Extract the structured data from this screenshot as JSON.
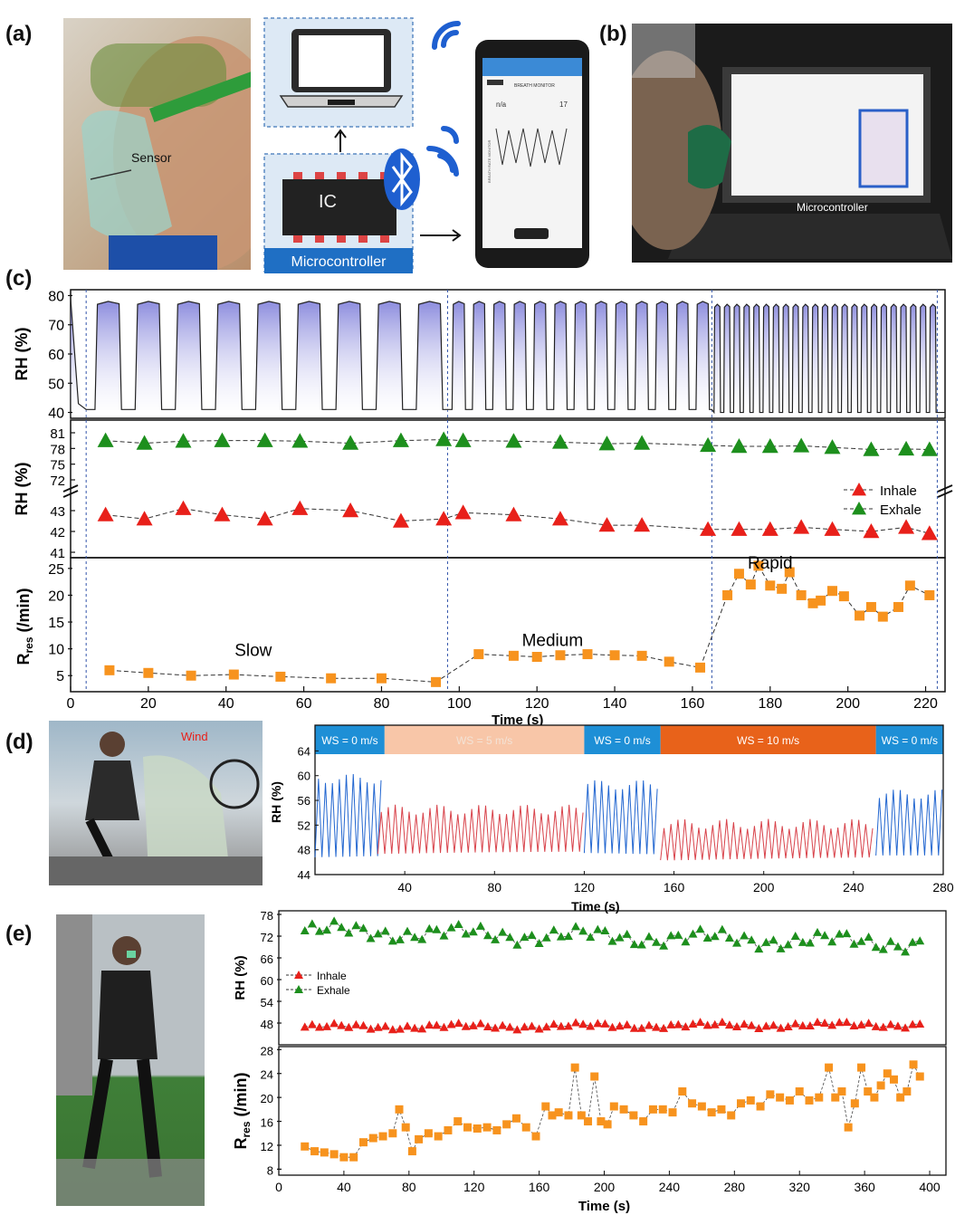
{
  "panels": {
    "a": "(a)",
    "b": "(b)",
    "c": "(c)",
    "d": "(d)",
    "e": "(e)"
  },
  "panel_a": {
    "sensor_label": "Sensor",
    "ic_label": "IC",
    "microcontroller_label": "Microcontroller",
    "phone_title": "BREATH MONITOR",
    "phone_value_left": "n/a",
    "phone_value_right": "17",
    "phone_axis": "BREATH RATE MONITOR",
    "icons": [
      "laptop-icon",
      "chip-icon",
      "bluetooth-icon",
      "wifi-icon",
      "phone-icon"
    ]
  },
  "panel_b": {
    "microcontroller_label": "Microcontroller"
  },
  "panel_d": {
    "wind_label": "Wind"
  },
  "colors": {
    "inhale": "#e8201a",
    "exhale": "#1d8f1d",
    "rres": "#f7931e",
    "wave_blue": "#2266d0",
    "wave_red": "#d8424a",
    "band_blue": "#1e8fd6",
    "band_light": "#f8c6a8",
    "band_orange": "#e8621a",
    "fill_top": "#7272d6"
  },
  "chart_data": [
    {
      "id": "c-top",
      "type": "line",
      "ylabel": "RH (%)",
      "ylim": [
        38,
        82
      ],
      "xlim": [
        0,
        225
      ],
      "yticks": [
        40,
        50,
        60,
        70,
        80
      ],
      "segments": [
        {
          "label": "Slow",
          "from": 4,
          "to": 97,
          "cycles": 9,
          "peak": 78,
          "trough": 41
        },
        {
          "label": "Medium",
          "from": 97,
          "to": 165,
          "cycles": 13,
          "peak": 78,
          "trough": 41
        },
        {
          "label": "Rapid",
          "from": 165,
          "to": 223,
          "cycles": 23,
          "peak": 77,
          "trough": 40
        }
      ]
    },
    {
      "id": "c-mid",
      "type": "scatter",
      "ylabel": "RH (%)",
      "yticks": [
        41,
        42,
        43,
        72,
        75,
        78,
        81
      ],
      "axis_break": true,
      "legend": [
        {
          "name": "Inhale"
        },
        {
          "name": "Exhale"
        }
      ],
      "series": [
        {
          "name": "Exhale",
          "x": [
            9,
            19,
            29,
            39,
            50,
            59,
            72,
            85,
            96,
            101,
            114,
            126,
            138,
            147,
            164,
            172,
            180,
            188,
            196,
            206,
            215,
            221
          ],
          "values": [
            79.5,
            79,
            79.4,
            79.5,
            79.5,
            79.4,
            79,
            79.5,
            79.7,
            79.5,
            79.4,
            79.2,
            78.9,
            79,
            78.6,
            78.4,
            78.4,
            78.5,
            78.2,
            77.8,
            77.9,
            77.8
          ]
        },
        {
          "name": "Inhale",
          "x": [
            9,
            19,
            29,
            39,
            50,
            59,
            72,
            85,
            96,
            101,
            114,
            126,
            138,
            147,
            164,
            172,
            180,
            188,
            196,
            206,
            215,
            221
          ],
          "values": [
            42.8,
            42.6,
            43.1,
            42.8,
            42.6,
            43.1,
            43.0,
            42.5,
            42.6,
            42.9,
            42.8,
            42.6,
            42.3,
            42.3,
            42.1,
            42.1,
            42.1,
            42.2,
            42.1,
            42.0,
            42.2,
            41.9
          ]
        }
      ]
    },
    {
      "id": "c-bottom",
      "type": "line",
      "xlabel": "Time (s)",
      "ylabel": "R_res (/min)",
      "xlim": [
        0,
        225
      ],
      "ylim": [
        2,
        27
      ],
      "xticks": [
        0,
        20,
        40,
        60,
        80,
        100,
        120,
        140,
        160,
        180,
        200,
        220
      ],
      "yticks": [
        5,
        10,
        15,
        20,
        25
      ],
      "annotations": [
        {
          "text": "Slow",
          "x": 47,
          "y": 8.7
        },
        {
          "text": "Medium",
          "x": 124,
          "y": 10.5
        },
        {
          "text": "Rapid",
          "x": 180,
          "y": 25
        }
      ],
      "series": [
        {
          "name": "R_res",
          "x": [
            10,
            20,
            31,
            42,
            54,
            67,
            80,
            94,
            105,
            114,
            120,
            126,
            133,
            140,
            147,
            154,
            162,
            169,
            172,
            175,
            177,
            180,
            183,
            185,
            188,
            191,
            193,
            196,
            199,
            203,
            206,
            209,
            213,
            216,
            221
          ],
          "values": [
            6,
            5.5,
            5,
            5.2,
            4.8,
            4.5,
            4.5,
            3.8,
            9,
            8.7,
            8.5,
            8.8,
            9,
            8.8,
            8.7,
            7.6,
            6.5,
            20,
            24,
            22,
            25.5,
            21.8,
            21.2,
            24.3,
            20,
            18.5,
            19,
            20.8,
            19.8,
            16.2,
            17.8,
            16,
            17.8,
            21.8,
            20
          ]
        }
      ]
    },
    {
      "id": "d",
      "type": "line",
      "xlabel": "Time (s)",
      "ylabel": "RH (%)",
      "xlim": [
        0,
        280
      ],
      "ylim": [
        44,
        64.5
      ],
      "xticks": [
        40,
        80,
        120,
        160,
        200,
        240,
        280
      ],
      "yticks": [
        44,
        48,
        52,
        56,
        60,
        64
      ],
      "bands": [
        {
          "from": 0,
          "to": 31,
          "label": "WS = 0 m/s",
          "color": "blue"
        },
        {
          "from": 31,
          "to": 120,
          "label": "WS = 5 m/s",
          "color": "light"
        },
        {
          "from": 120,
          "to": 154,
          "label": "WS = 0 m/s",
          "color": "blue"
        },
        {
          "from": 154,
          "to": 250,
          "label": "WS = 10 m/s",
          "color": "orange"
        },
        {
          "from": 250,
          "to": 280,
          "label": "WS = 0 m/s",
          "color": "blue"
        }
      ],
      "segments": [
        {
          "from": 0,
          "to": 28,
          "period": 3.1,
          "peak": 59.5,
          "trough": 46.8,
          "color": "blue"
        },
        {
          "from": 28,
          "to": 120,
          "period": 3.1,
          "peak": 54.5,
          "trough": 47.2,
          "color": "red"
        },
        {
          "from": 120,
          "to": 154,
          "period": 3.1,
          "peak": 58.5,
          "trough": 47.2,
          "color": "blue"
        },
        {
          "from": 154,
          "to": 250,
          "period": 3.1,
          "peak": 52.2,
          "trough": 46.3,
          "color": "red"
        },
        {
          "from": 250,
          "to": 280,
          "period": 3.1,
          "peak": 57,
          "trough": 46.6,
          "color": "blue"
        }
      ]
    },
    {
      "id": "e-top",
      "type": "scatter",
      "ylabel": "RH (%)",
      "xlim": [
        0,
        410
      ],
      "ylim": [
        42,
        79
      ],
      "yticks": [
        48,
        54,
        60,
        66,
        72,
        78
      ],
      "legend": [
        {
          "name": "Inhale"
        },
        {
          "name": "Exhale"
        }
      ],
      "series": [
        {
          "name": "Exhale",
          "trend_start": 73.5,
          "trend_end": 70.2,
          "x_start": 16,
          "x_end": 396,
          "step": 4.5
        },
        {
          "name": "Inhale",
          "trend_start": 46.9,
          "trend_end": 47.6,
          "x_start": 16,
          "x_end": 396,
          "step": 4.5
        }
      ]
    },
    {
      "id": "e-bottom",
      "type": "line",
      "xlabel": "Time (s)",
      "ylabel": "R_res (/min)",
      "xlim": [
        0,
        410
      ],
      "ylim": [
        7,
        28.5
      ],
      "xticks": [
        0,
        40,
        80,
        120,
        160,
        200,
        240,
        280,
        320,
        360,
        400
      ],
      "yticks": [
        8,
        12,
        16,
        20,
        24,
        28
      ],
      "series": [
        {
          "name": "R_res",
          "x": [
            16,
            22,
            28,
            34,
            40,
            46,
            52,
            58,
            64,
            70,
            74,
            78,
            82,
            86,
            92,
            98,
            104,
            110,
            116,
            122,
            128,
            134,
            140,
            146,
            152,
            158,
            164,
            168,
            172,
            178,
            182,
            186,
            190,
            194,
            198,
            202,
            206,
            212,
            218,
            224,
            230,
            236,
            242,
            248,
            254,
            260,
            266,
            272,
            278,
            284,
            290,
            296,
            302,
            308,
            314,
            320,
            326,
            332,
            338,
            342,
            346,
            350,
            354,
            358,
            362,
            366,
            370,
            374,
            378,
            382,
            386,
            390,
            394
          ],
          "values": [
            11.8,
            11,
            10.8,
            10.5,
            10,
            10,
            12.5,
            13.2,
            13.5,
            14,
            18,
            15,
            11,
            13,
            14,
            13.5,
            14.5,
            16,
            15,
            14.8,
            15,
            14.5,
            15.5,
            16.5,
            15,
            13.5,
            18.5,
            17,
            17.5,
            17,
            25,
            17,
            16,
            23.5,
            16,
            15.5,
            18.5,
            18,
            17,
            16,
            18,
            18,
            17.5,
            21,
            19,
            18.5,
            17.5,
            18,
            17,
            19,
            19.5,
            18.5,
            20.5,
            20,
            19.5,
            21,
            19.5,
            20,
            25,
            20,
            21,
            15,
            19,
            25,
            21,
            20,
            22,
            24,
            23,
            20,
            21,
            25.5,
            23.5
          ]
        }
      ]
    }
  ]
}
